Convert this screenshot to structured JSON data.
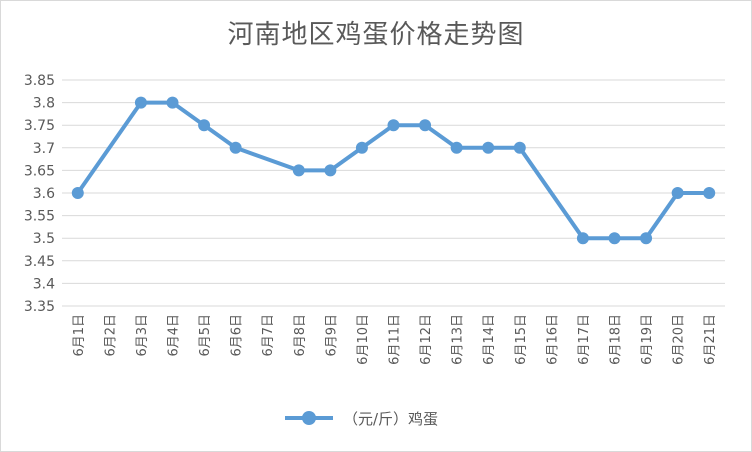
{
  "chart_data": {
    "type": "line",
    "title": "河南地区鸡蛋价格走势图",
    "xlabel": "",
    "ylabel": "",
    "categories": [
      "6月1日",
      "6月2日",
      "6月3日",
      "6月4日",
      "6月5日",
      "6月6日",
      "6月7日",
      "6月8日",
      "6月9日",
      "6月10日",
      "6月11日",
      "6月12日",
      "6月13日",
      "6月14日",
      "6月15日",
      "6月16日",
      "6月17日",
      "6月18日",
      "6月19日",
      "6月20日",
      "6月21日"
    ],
    "series": [
      {
        "name": "（元/斤）鸡蛋",
        "values": [
          3.6,
          null,
          3.8,
          3.8,
          3.75,
          3.7,
          null,
          3.65,
          3.65,
          3.7,
          3.75,
          3.75,
          3.7,
          3.7,
          3.7,
          null,
          3.5,
          3.5,
          3.5,
          3.6,
          3.6
        ]
      }
    ],
    "ylim": [
      3.35,
      3.85
    ],
    "yticks": [
      "3.35",
      "3.4",
      "3.45",
      "3.5",
      "3.55",
      "3.6",
      "3.65",
      "3.7",
      "3.75",
      "3.8",
      "3.85"
    ],
    "grid": true,
    "legend": "bottom",
    "colors": {
      "series": "#5b9bd5",
      "grid": "#d9d9d9",
      "text": "#595959"
    }
  }
}
